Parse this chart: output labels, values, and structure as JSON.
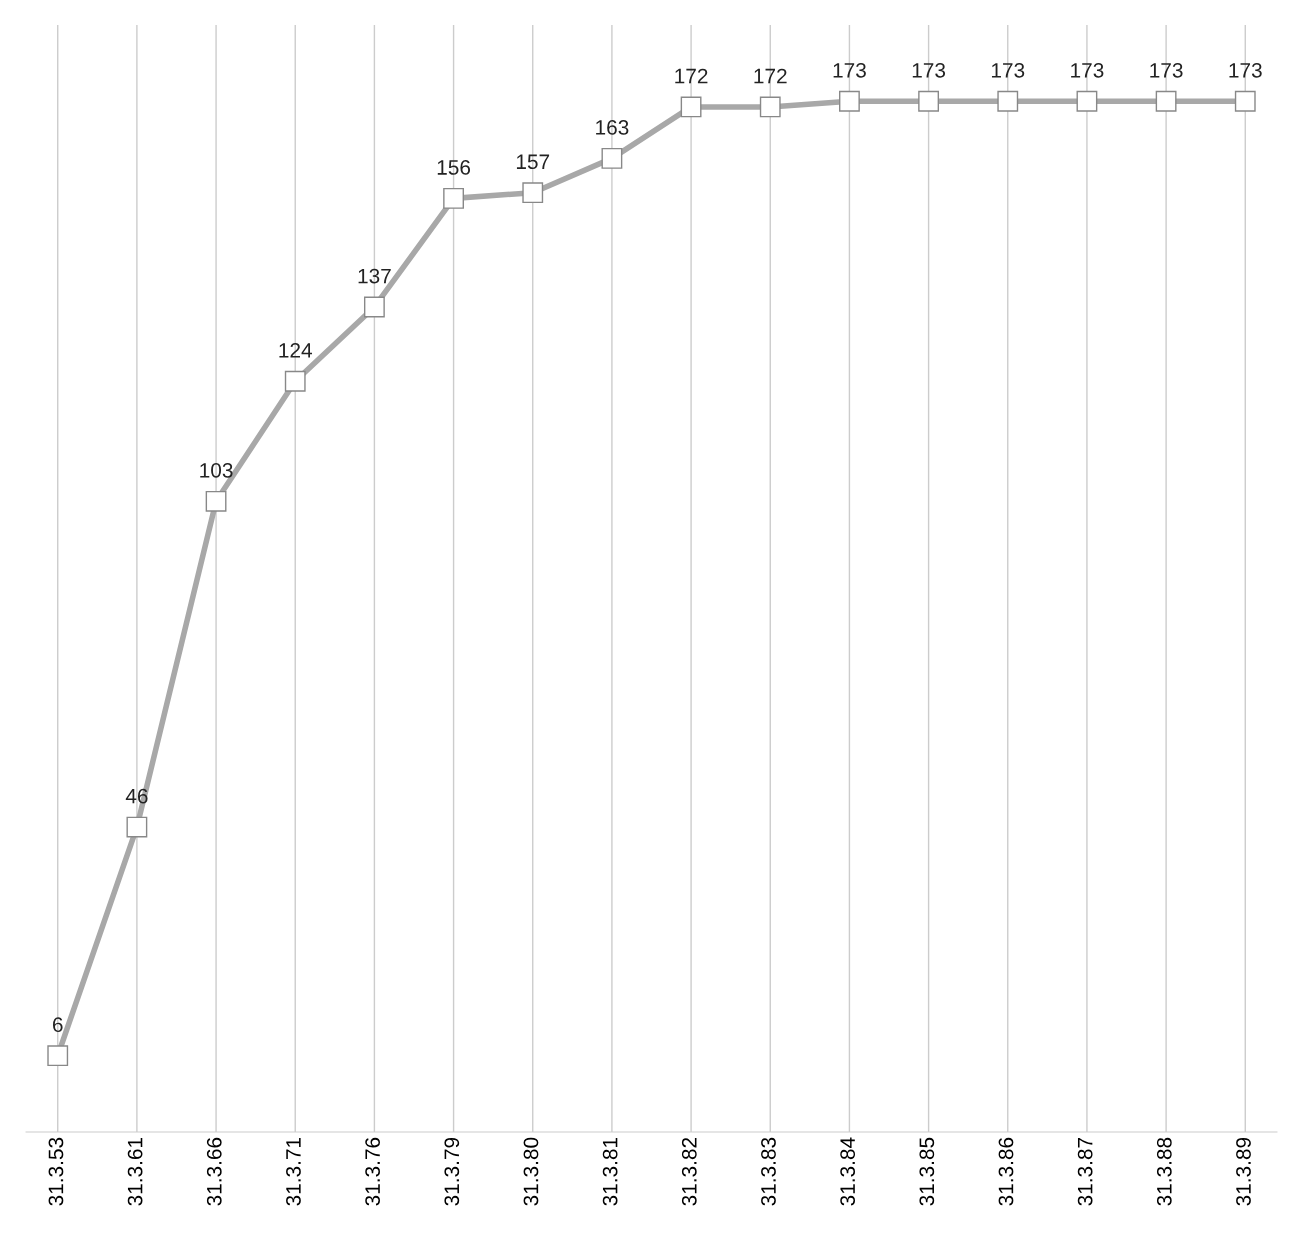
{
  "chart_data": {
    "type": "line",
    "categories": [
      "31.3.53",
      "31.3.61",
      "31.3.66",
      "31.3.71",
      "31.3.76",
      "31.3.79",
      "31.3.80",
      "31.3.81",
      "31.3.82",
      "31.3.83",
      "31.3.84",
      "31.3.85",
      "31.3.86",
      "31.3.87",
      "31.3.88",
      "31.3.89"
    ],
    "values": [
      6,
      46,
      103,
      124,
      137,
      156,
      157,
      163,
      172,
      172,
      173,
      173,
      173,
      173,
      173,
      173
    ],
    "color": "#a8a8a8",
    "marker": "square",
    "line_style": "solid",
    "data_labels": true,
    "grid": "x",
    "tick_labels": "x"
  }
}
